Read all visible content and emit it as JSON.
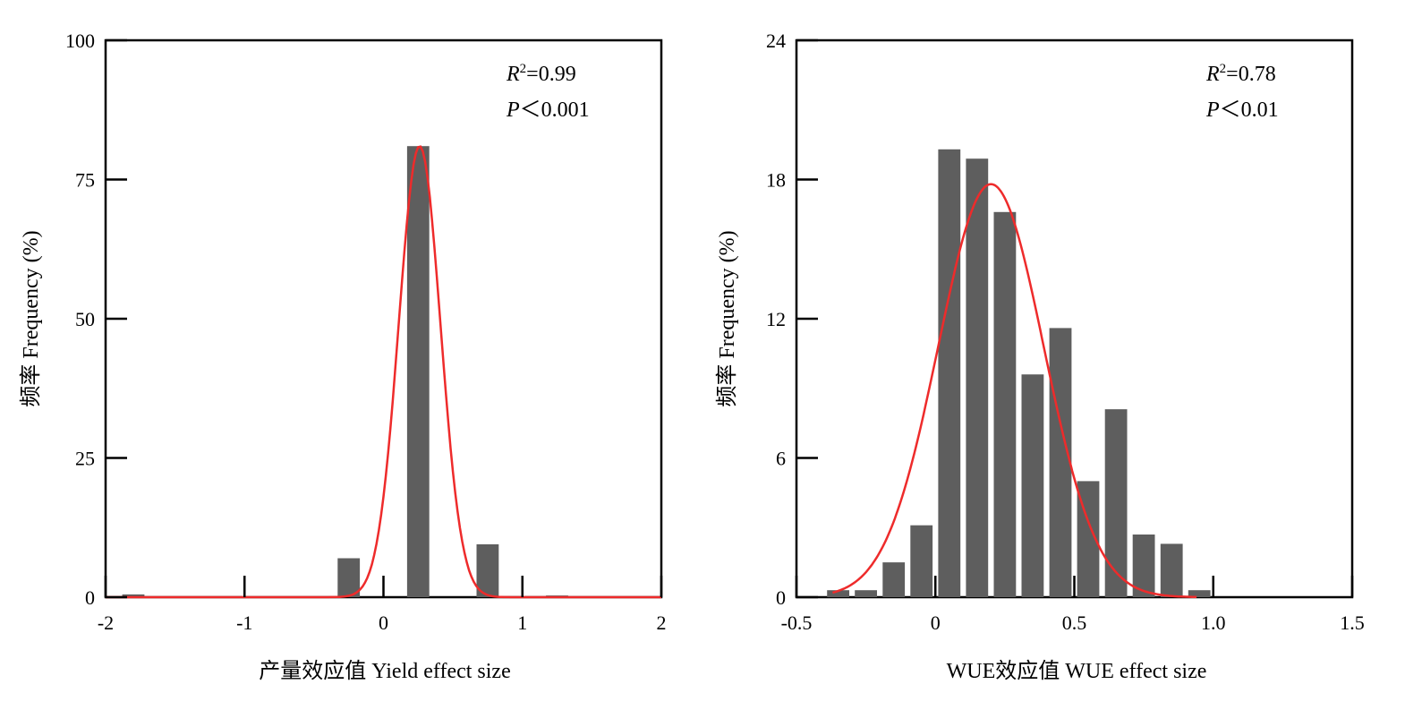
{
  "chart_data": [
    {
      "type": "bar",
      "xlabel": "产量效应值 Yield effect size",
      "ylabel": "频率 Frequency (%)",
      "xlim": [
        -2,
        2
      ],
      "ylim": [
        0,
        100
      ],
      "xticks": [
        -2,
        -1,
        0,
        1,
        2
      ],
      "xtick_labels": [
        "-2",
        "-1",
        "0",
        "1",
        "2"
      ],
      "yticks": [
        0,
        25,
        50,
        75,
        100
      ],
      "ytick_labels": [
        "0",
        "25",
        "50",
        "75",
        "100"
      ],
      "bin_width": 0.16,
      "bars": [
        {
          "x": -1.8,
          "y": 0.5
        },
        {
          "x": -0.25,
          "y": 7
        },
        {
          "x": 0.25,
          "y": 81
        },
        {
          "x": 0.75,
          "y": 9.5
        },
        {
          "x": 1.25,
          "y": 0.3
        }
      ],
      "fit_curve": {
        "type": "gaussian",
        "color": "#ee2b2b",
        "peak": 81,
        "mean": 0.26,
        "sd": 0.15,
        "x_range": [
          -2,
          2
        ]
      },
      "annotations": {
        "r2_symbol": "R",
        "r2_sup": "2",
        "r2_value": "=0.99",
        "p_symbol": "P",
        "p_value": "＜0.001"
      },
      "bar_color": "#5e5e5e",
      "grid": false
    },
    {
      "type": "bar",
      "xlabel": "WUE效应值 WUE effect size",
      "ylabel": "频率 Frequency (%)",
      "xlim": [
        -0.5,
        1.5
      ],
      "ylim": [
        0,
        24
      ],
      "xticks": [
        -0.5,
        0,
        0.5,
        1.0,
        1.5
      ],
      "xtick_labels": [
        "-0.5",
        "0",
        "0.5",
        "1.0",
        "1.5"
      ],
      "yticks": [
        0,
        6,
        12,
        18,
        24
      ],
      "ytick_labels": [
        "0",
        "6",
        "12",
        "18",
        "24"
      ],
      "bin_width": 0.08,
      "bars": [
        {
          "x": -0.35,
          "y": 0.3
        },
        {
          "x": -0.25,
          "y": 0.3
        },
        {
          "x": -0.15,
          "y": 1.5
        },
        {
          "x": -0.05,
          "y": 3.1
        },
        {
          "x": 0.05,
          "y": 19.3
        },
        {
          "x": 0.15,
          "y": 18.9
        },
        {
          "x": 0.25,
          "y": 16.6
        },
        {
          "x": 0.35,
          "y": 9.6
        },
        {
          "x": 0.45,
          "y": 11.6
        },
        {
          "x": 0.55,
          "y": 5
        },
        {
          "x": 0.65,
          "y": 8.1
        },
        {
          "x": 0.75,
          "y": 2.7
        },
        {
          "x": 0.85,
          "y": 2.3
        },
        {
          "x": 0.95,
          "y": 0.3
        }
      ],
      "fit_curve": {
        "type": "gaussian",
        "color": "#ee2b2b",
        "peak": 17.8,
        "mean": 0.2,
        "sd": 0.19,
        "x_range": [
          -0.37,
          0.94
        ]
      },
      "annotations": {
        "r2_symbol": "R",
        "r2_sup": "2",
        "r2_value": "=0.78",
        "p_symbol": "P",
        "p_value": "＜0.01"
      },
      "bar_color": "#5e5e5e",
      "grid": false
    }
  ]
}
